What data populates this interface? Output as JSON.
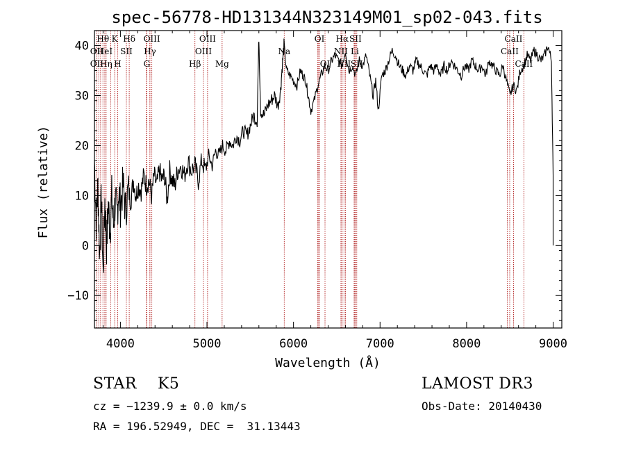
{
  "chart_data": {
    "type": "line",
    "title": "spec-56778-HD131344N323149M01_sp02-043.fits",
    "xlabel": "Wavelength (Å)",
    "ylabel": "Flux (relative)",
    "xlim": [
      3700,
      9100
    ],
    "ylim": [
      -16.5,
      43
    ],
    "xticks": [
      4000,
      5000,
      6000,
      7000,
      8000,
      9000
    ],
    "yticks": [
      -10,
      0,
      10,
      20,
      30,
      40
    ],
    "grid": false,
    "series": [
      {
        "x": [
          3700,
          3720,
          3740,
          3760,
          3780,
          3800,
          3820,
          3840,
          3860,
          3880,
          3900,
          3920,
          3940,
          3960,
          3980,
          4000,
          4030,
          4060,
          4090,
          4120,
          4150,
          4180,
          4210,
          4240,
          4270,
          4300,
          4330,
          4360,
          4390,
          4420,
          4450,
          4480,
          4510,
          4540,
          4570,
          4600,
          4630,
          4660,
          4700,
          4740,
          4780,
          4820,
          4860,
          4900,
          4940,
          4980,
          5020,
          5060,
          5100,
          5140,
          5180,
          5220,
          5260,
          5300,
          5340,
          5380,
          5420,
          5460,
          5500,
          5540,
          5580,
          5600,
          5620,
          5660,
          5700,
          5740,
          5780,
          5820,
          5850,
          5870,
          5890,
          5920,
          5960,
          6000,
          6040,
          6080,
          6110,
          6140,
          6170,
          6200,
          6240,
          6280,
          6320,
          6360,
          6400,
          6440,
          6480,
          6520,
          6560,
          6600,
          6640,
          6680,
          6720,
          6760,
          6800,
          6840,
          6880,
          6920,
          6950,
          6980,
          7020,
          7060,
          7100,
          7140,
          7180,
          7220,
          7260,
          7300,
          7340,
          7380,
          7420,
          7460,
          7500,
          7540,
          7580,
          7620,
          7660,
          7700,
          7740,
          7780,
          7820,
          7860,
          7900,
          7940,
          7980,
          8020,
          8060,
          8100,
          8140,
          8180,
          8220,
          8260,
          8300,
          8340,
          8380,
          8420,
          8460,
          8500,
          8540,
          8580,
          8620,
          8660,
          8700,
          8740,
          8780,
          8820,
          8860,
          8900,
          8940,
          8980,
          9000
        ],
        "y": [
          17,
          5,
          12,
          -2,
          10,
          -6,
          9,
          0,
          8,
          3,
          10,
          4,
          9,
          6,
          11,
          8,
          12,
          7,
          11,
          9,
          13,
          10,
          12,
          11,
          14,
          12,
          13,
          10,
          14,
          12,
          15,
          13,
          14,
          9,
          15,
          13,
          12,
          15,
          16,
          14,
          17,
          15,
          16,
          13,
          17,
          15,
          18,
          16,
          19,
          18,
          20,
          19,
          21,
          20,
          22,
          21,
          23,
          22,
          24,
          26,
          25,
          42,
          27,
          26,
          28,
          29,
          30,
          28,
          31,
          36,
          40,
          35,
          34,
          33,
          32,
          35,
          34,
          33,
          30,
          27,
          29,
          32,
          34,
          36,
          35,
          37,
          38,
          37,
          36,
          39,
          35,
          36,
          34,
          37,
          36,
          38,
          34,
          30,
          33,
          27,
          34,
          35,
          37,
          39,
          38,
          36,
          35,
          34,
          36,
          35,
          37,
          36,
          35,
          34,
          36,
          35,
          36,
          34,
          36,
          35,
          37,
          36,
          35,
          34,
          36,
          35,
          37,
          36,
          35,
          36,
          34,
          37,
          36,
          35,
          34,
          36,
          33,
          30,
          32,
          31,
          35,
          36,
          38,
          37,
          39,
          38,
          37,
          38,
          40,
          37,
          14
        ]
      }
    ],
    "lines": [
      {
        "name": "Hθ",
        "x": 3798,
        "row": 0
      },
      {
        "name": "OII",
        "x": 3727,
        "row": 1
      },
      {
        "name": "OII",
        "x": 3727,
        "row": 2
      },
      {
        "name": "HeI",
        "x": 3820,
        "row": 1
      },
      {
        "name": "Hη",
        "x": 3835,
        "row": 2
      },
      {
        "name": "K",
        "x": 3934,
        "row": 0
      },
      {
        "name": "SII",
        "x": 4069,
        "row": 1
      },
      {
        "name": "H",
        "x": 3969,
        "row": 2
      },
      {
        "name": "Hδ",
        "x": 4102,
        "row": 0
      },
      {
        "name": "OIII",
        "x": 4363,
        "row": 0
      },
      {
        "name": "Hγ",
        "x": 4341,
        "row": 1
      },
      {
        "name": "G",
        "x": 4305,
        "row": 2
      },
      {
        "name": "OIII",
        "x": 5007,
        "row": 0
      },
      {
        "name": "OIII",
        "x": 4959,
        "row": 1
      },
      {
        "name": "Hβ",
        "x": 4861,
        "row": 2
      },
      {
        "name": "Mg",
        "x": 5175,
        "row": 2
      },
      {
        "name": "Na",
        "x": 5893,
        "row": 1
      },
      {
        "name": "OI",
        "x": 6300,
        "row": 0
      },
      {
        "name": "OI",
        "x": 6364,
        "row": 2
      },
      {
        "name": "Hα",
        "x": 6563,
        "row": 0
      },
      {
        "name": "NII",
        "x": 6548,
        "row": 1
      },
      {
        "name": "NII",
        "x": 6583,
        "row": 2
      },
      {
        "name": "SII",
        "x": 6716,
        "row": 0
      },
      {
        "name": "Li",
        "x": 6708,
        "row": 1
      },
      {
        "name": "SII",
        "x": 6731,
        "row": 2
      },
      {
        "name": "CaII",
        "x": 8542,
        "row": 0
      },
      {
        "name": "CaII",
        "x": 8498,
        "row": 1
      },
      {
        "name": "CaII",
        "x": 8662,
        "row": 2
      }
    ],
    "extra_lines_x": [
      3750,
      3771,
      3889,
      4340,
      4300,
      6280,
      6290,
      6550,
      6600,
      6700,
      8470
    ]
  },
  "info": {
    "class": "STAR    K5",
    "survey": "LAMOST DR3",
    "cz": "cz = −1239.9 ± 0.0 km/s",
    "obs_date": "Obs-Date: 20140430",
    "radec": "RA = 196.52949, DEC =  31.13443"
  },
  "colors": {
    "line_marker": "#b22222",
    "spectrum": "#000000"
  }
}
